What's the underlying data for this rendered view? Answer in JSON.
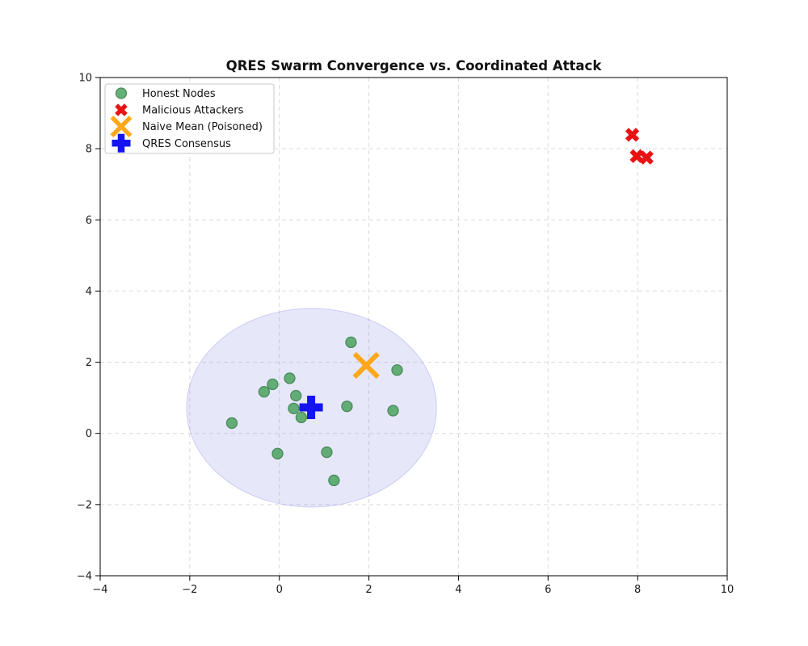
{
  "chart_data": {
    "type": "scatter",
    "title": "QRES Swarm Convergence vs. Coordinated Attack",
    "xlabel": "",
    "ylabel": "",
    "xlim": [
      -4,
      10
    ],
    "ylim": [
      -4,
      10
    ],
    "xticks": [
      -4,
      -2,
      0,
      2,
      4,
      6,
      8,
      10
    ],
    "yticks": [
      -4,
      -2,
      0,
      2,
      4,
      6,
      8,
      10
    ],
    "grid": true,
    "grid_style": "dashed",
    "legend_position": "upper-left",
    "colors": {
      "background": "#ffffff",
      "grid": "#d9d9d9",
      "spine": "#000000",
      "tick_label": "#1a1a1a",
      "title": "#111111",
      "legend_border": "#c8c8c8",
      "legend_background": "#ffffff"
    },
    "series": [
      {
        "id": "honest",
        "name": "Honest Nodes",
        "marker": "circle",
        "color": "#4ba35e",
        "edge_color": "#2f7a44",
        "points": [
          [
            1.6,
            2.56
          ],
          [
            2.63,
            1.78
          ],
          [
            0.23,
            1.55
          ],
          [
            -0.15,
            1.38
          ],
          [
            -0.34,
            1.17
          ],
          [
            0.37,
            1.06
          ],
          [
            0.32,
            0.7
          ],
          [
            0.49,
            0.45
          ],
          [
            1.51,
            0.76
          ],
          [
            2.54,
            0.64
          ],
          [
            -1.06,
            0.29
          ],
          [
            -0.04,
            -0.57
          ],
          [
            1.06,
            -0.53
          ],
          [
            1.22,
            -1.32
          ]
        ]
      },
      {
        "id": "attackers",
        "name": "Malicious Attackers",
        "marker": "x-filled",
        "color": "#e81414",
        "points": [
          [
            7.88,
            8.39
          ],
          [
            7.98,
            7.79
          ],
          [
            8.2,
            7.75
          ]
        ]
      },
      {
        "id": "naive-mean",
        "name": "Naive Mean (Poisoned)",
        "marker": "x-line",
        "color": "#ffa81c",
        "points": [
          [
            1.94,
            1.91
          ]
        ]
      },
      {
        "id": "qres",
        "name": "QRES Consensus",
        "marker": "plus-filled",
        "color": "#1414f0",
        "points": [
          [
            0.71,
            0.73
          ]
        ]
      }
    ],
    "ellipse": {
      "cx": 0.72,
      "cy": 0.72,
      "rx": 2.79,
      "ry": 2.79,
      "fill": "#7b7be4",
      "fill_opacity": 0.18,
      "edge_opacity": 0.32
    }
  }
}
